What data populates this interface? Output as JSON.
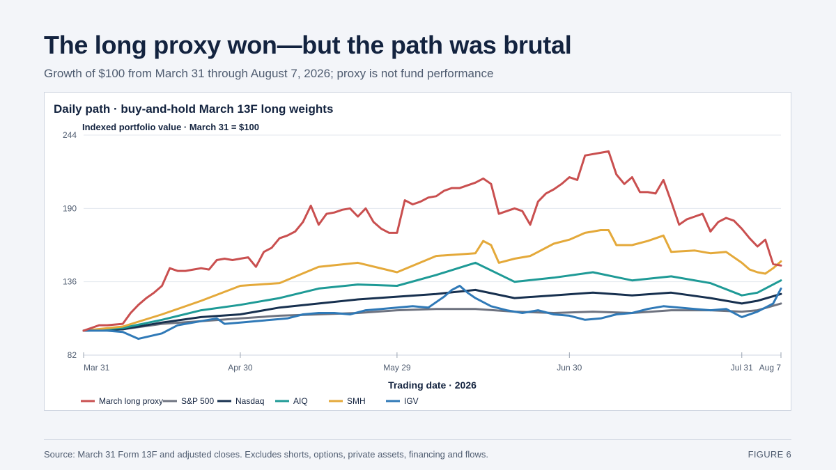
{
  "header": {
    "title": "The long proxy won—but the path was brutal",
    "subtitle": "Growth of $100 from March 31 through August 7, 2026; proxy is not fund performance"
  },
  "card": {
    "title": "Daily path · buy-and-hold March 13F long weights"
  },
  "footer": {
    "source": "Source: March 31 Form 13F and adjusted closes. Excludes shorts, options, private assets, financing and flows.",
    "figure": "FIGURE 6"
  },
  "chart_data": {
    "type": "line",
    "title": "",
    "ylabel": "Indexed portfolio value · March 31 = $100",
    "xlabel": "Trading date · 2026",
    "ylim": [
      82,
      244
    ],
    "yticks": [
      82,
      136,
      190,
      244
    ],
    "xticks": [
      {
        "label": "Mar 31",
        "x": 0
      },
      {
        "label": "Apr 30",
        "x": 20
      },
      {
        "label": "May 29",
        "x": 40
      },
      {
        "label": "Jun 30",
        "x": 62
      },
      {
        "label": "Jul 31",
        "x": 84
      },
      {
        "label": "Aug 7",
        "x": 89
      }
    ],
    "xlim": [
      0,
      89
    ],
    "grid": true,
    "legend_position": "bottom-left",
    "series": [
      {
        "name": "March long proxy",
        "color": "#c94f4f",
        "points": [
          [
            0,
            100
          ],
          [
            1,
            102
          ],
          [
            2,
            104
          ],
          [
            3,
            104
          ],
          [
            4,
            104.5
          ],
          [
            5,
            105
          ],
          [
            6,
            113
          ],
          [
            7,
            119
          ],
          [
            8,
            124
          ],
          [
            9,
            128
          ],
          [
            10,
            133
          ],
          [
            11,
            146
          ],
          [
            12,
            144
          ],
          [
            13,
            144
          ],
          [
            14,
            145
          ],
          [
            15,
            146
          ],
          [
            16,
            145
          ],
          [
            17,
            152
          ],
          [
            18,
            153
          ],
          [
            19,
            152
          ],
          [
            20,
            153
          ],
          [
            21,
            154
          ],
          [
            22,
            147
          ],
          [
            23,
            158
          ],
          [
            24,
            161
          ],
          [
            25,
            168
          ],
          [
            26,
            170
          ],
          [
            27,
            173
          ],
          [
            28,
            180
          ],
          [
            29,
            192
          ],
          [
            30,
            178
          ],
          [
            31,
            186
          ],
          [
            32,
            187
          ],
          [
            33,
            189
          ],
          [
            34,
            190
          ],
          [
            35,
            184
          ],
          [
            36,
            190
          ],
          [
            37,
            180
          ],
          [
            38,
            175
          ],
          [
            39,
            172
          ],
          [
            40,
            172
          ],
          [
            41,
            196
          ],
          [
            42,
            193
          ],
          [
            43,
            195
          ],
          [
            44,
            198
          ],
          [
            45,
            199
          ],
          [
            46,
            203
          ],
          [
            47,
            205
          ],
          [
            48,
            205
          ],
          [
            49,
            207
          ],
          [
            50,
            209
          ],
          [
            51,
            212
          ],
          [
            52,
            208
          ],
          [
            53,
            186
          ],
          [
            54,
            188
          ],
          [
            55,
            190
          ],
          [
            56,
            188
          ],
          [
            57,
            178
          ],
          [
            58,
            195
          ],
          [
            59,
            201
          ],
          [
            60,
            204
          ],
          [
            61,
            208
          ],
          [
            62,
            213
          ],
          [
            63,
            211
          ],
          [
            64,
            229
          ],
          [
            65,
            230
          ],
          [
            66,
            231
          ],
          [
            67,
            232
          ],
          [
            68,
            215
          ],
          [
            69,
            208
          ],
          [
            70,
            213
          ],
          [
            71,
            202
          ],
          [
            72,
            202
          ],
          [
            73,
            201
          ],
          [
            74,
            211
          ],
          [
            75,
            195
          ],
          [
            76,
            178
          ],
          [
            77,
            182
          ],
          [
            78,
            184
          ],
          [
            79,
            186
          ],
          [
            80,
            173
          ],
          [
            81,
            180
          ],
          [
            82,
            183
          ],
          [
            83,
            181
          ],
          [
            84,
            175
          ],
          [
            85,
            168
          ],
          [
            86,
            162
          ],
          [
            87,
            167
          ],
          [
            88,
            149
          ],
          [
            89,
            148
          ]
        ]
      },
      {
        "name": "S&P 500",
        "color": "#6e7380",
        "points": [
          [
            0,
            100
          ],
          [
            5,
            101
          ],
          [
            10,
            105
          ],
          [
            15,
            107
          ],
          [
            20,
            109
          ],
          [
            25,
            111
          ],
          [
            30,
            112
          ],
          [
            35,
            113
          ],
          [
            40,
            115
          ],
          [
            45,
            116
          ],
          [
            50,
            116
          ],
          [
            55,
            114
          ],
          [
            60,
            113
          ],
          [
            65,
            114
          ],
          [
            70,
            113
          ],
          [
            75,
            115
          ],
          [
            80,
            115
          ],
          [
            84,
            114
          ],
          [
            86,
            115
          ],
          [
            89,
            120
          ]
        ]
      },
      {
        "name": "Nasdaq",
        "color": "#17304f",
        "points": [
          [
            0,
            100
          ],
          [
            5,
            101
          ],
          [
            10,
            106
          ],
          [
            15,
            110
          ],
          [
            20,
            112
          ],
          [
            25,
            117
          ],
          [
            30,
            120
          ],
          [
            35,
            123
          ],
          [
            40,
            125
          ],
          [
            45,
            127
          ],
          [
            50,
            130
          ],
          [
            55,
            124
          ],
          [
            60,
            126
          ],
          [
            65,
            128
          ],
          [
            70,
            126
          ],
          [
            75,
            128
          ],
          [
            80,
            124
          ],
          [
            84,
            120
          ],
          [
            86,
            122
          ],
          [
            89,
            127
          ]
        ]
      },
      {
        "name": "AIQ",
        "color": "#1e9a96",
        "points": [
          [
            0,
            100
          ],
          [
            5,
            102
          ],
          [
            10,
            108
          ],
          [
            15,
            115
          ],
          [
            20,
            119
          ],
          [
            25,
            124
          ],
          [
            30,
            131
          ],
          [
            35,
            134
          ],
          [
            40,
            133
          ],
          [
            45,
            141
          ],
          [
            50,
            150
          ],
          [
            55,
            136
          ],
          [
            60,
            139
          ],
          [
            65,
            143
          ],
          [
            70,
            137
          ],
          [
            75,
            140
          ],
          [
            80,
            135
          ],
          [
            84,
            126
          ],
          [
            86,
            128
          ],
          [
            89,
            137
          ]
        ]
      },
      {
        "name": "SMH",
        "color": "#e4a93a",
        "points": [
          [
            0,
            100
          ],
          [
            5,
            103
          ],
          [
            10,
            112
          ],
          [
            15,
            122
          ],
          [
            20,
            133
          ],
          [
            25,
            135
          ],
          [
            30,
            147
          ],
          [
            35,
            150
          ],
          [
            40,
            143
          ],
          [
            45,
            155
          ],
          [
            50,
            157
          ],
          [
            51,
            166
          ],
          [
            52,
            163
          ],
          [
            53,
            150
          ],
          [
            55,
            153
          ],
          [
            57,
            155
          ],
          [
            58,
            158
          ],
          [
            60,
            164
          ],
          [
            62,
            167
          ],
          [
            64,
            172
          ],
          [
            65,
            173
          ],
          [
            66,
            174
          ],
          [
            67,
            174
          ],
          [
            68,
            163
          ],
          [
            70,
            163
          ],
          [
            72,
            166
          ],
          [
            74,
            170
          ],
          [
            75,
            158
          ],
          [
            78,
            159
          ],
          [
            80,
            157
          ],
          [
            82,
            158
          ],
          [
            84,
            150
          ],
          [
            85,
            145
          ],
          [
            86,
            143
          ],
          [
            87,
            142
          ],
          [
            88,
            146
          ],
          [
            89,
            151
          ]
        ]
      },
      {
        "name": "IGV",
        "color": "#2f79b7",
        "points": [
          [
            0,
            100
          ],
          [
            3,
            100
          ],
          [
            5,
            99
          ],
          [
            7,
            94
          ],
          [
            10,
            98
          ],
          [
            12,
            104
          ],
          [
            15,
            107
          ],
          [
            17,
            109
          ],
          [
            18,
            105
          ],
          [
            20,
            106
          ],
          [
            22,
            107
          ],
          [
            24,
            108
          ],
          [
            26,
            109
          ],
          [
            28,
            112
          ],
          [
            30,
            113
          ],
          [
            32,
            113
          ],
          [
            34,
            112
          ],
          [
            36,
            115
          ],
          [
            38,
            116
          ],
          [
            40,
            117
          ],
          [
            42,
            118
          ],
          [
            44,
            117
          ],
          [
            46,
            125
          ],
          [
            47,
            130
          ],
          [
            48,
            133
          ],
          [
            49,
            128
          ],
          [
            50,
            124
          ],
          [
            52,
            118
          ],
          [
            54,
            115
          ],
          [
            56,
            113
          ],
          [
            58,
            115
          ],
          [
            60,
            112
          ],
          [
            62,
            111
          ],
          [
            64,
            108
          ],
          [
            66,
            109
          ],
          [
            68,
            112
          ],
          [
            70,
            113
          ],
          [
            72,
            116
          ],
          [
            74,
            118
          ],
          [
            76,
            117
          ],
          [
            78,
            116
          ],
          [
            80,
            115
          ],
          [
            82,
            116
          ],
          [
            84,
            110
          ],
          [
            86,
            114
          ],
          [
            88,
            120
          ],
          [
            89,
            131
          ]
        ]
      }
    ]
  }
}
